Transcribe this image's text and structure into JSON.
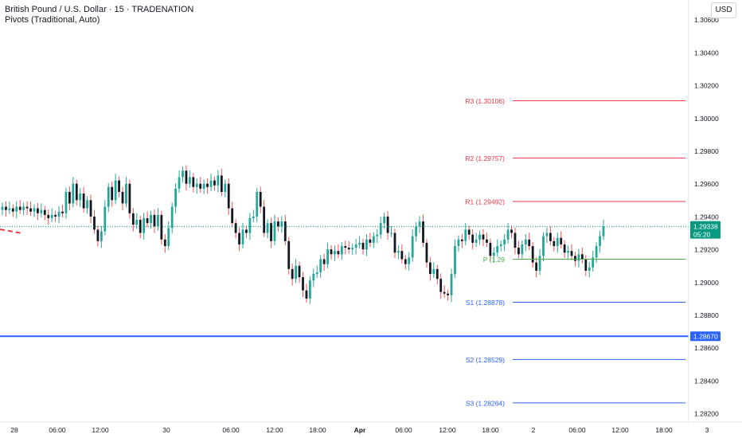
{
  "header": {
    "symbol_line": "British Pound / U.S. Dollar · 15 · TRADENATION",
    "indicator_line": "Pivots (Traditional, Auto)",
    "currency_button": "USD"
  },
  "colors": {
    "up": "#26a69a",
    "down": "#131722",
    "wick_down": "#ef5350",
    "resistance": "#f23645",
    "pivot": "#4caf50",
    "support": "#2962ff",
    "price_line": "#089981",
    "axis_text": "#131722"
  },
  "chart_data": {
    "type": "candlestick",
    "y_axis": {
      "range": [
        1.2805,
        1.3072
      ],
      "ticks": [
        "1.30600",
        "1.30400",
        "1.30200",
        "1.30000",
        "1.29800",
        "1.29600",
        "1.29400",
        "1.29200",
        "1.29000",
        "1.28800",
        "1.28600",
        "1.28400",
        "1.28200"
      ],
      "tick_values": [
        1.306,
        1.304,
        1.302,
        1.3,
        1.298,
        1.296,
        1.294,
        1.292,
        1.29,
        1.288,
        1.286,
        1.284,
        1.282
      ]
    },
    "x_axis": {
      "ticks": [
        "28",
        "06:00",
        "12:00",
        "30",
        "06:00",
        "12:00",
        "18:00",
        "Apr",
        "06:00",
        "12:00",
        "18:00",
        "2",
        "06:00",
        "12:00",
        "18:00",
        "3"
      ],
      "bold": [
        false,
        false,
        false,
        false,
        false,
        false,
        false,
        true,
        false,
        false,
        false,
        false,
        false,
        false,
        false,
        false
      ]
    },
    "pivots": [
      {
        "label": "R3 (1.30106)",
        "value": 1.30106,
        "kind": "resistance"
      },
      {
        "label": "R2 (1.29757)",
        "value": 1.29757,
        "kind": "resistance"
      },
      {
        "label": "R1 (1.29492)",
        "value": 1.29492,
        "kind": "resistance"
      },
      {
        "label": "P (1.29",
        "value": 1.2914,
        "kind": "pivot"
      },
      {
        "label": "S1 (1.28878)",
        "value": 1.28878,
        "kind": "support"
      },
      {
        "label": "S2 (1.28529)",
        "value": 1.28529,
        "kind": "support"
      },
      {
        "label": "S3 (1.28264)",
        "value": 1.28264,
        "kind": "support"
      }
    ],
    "horizontal_line": {
      "value": 1.2867,
      "label": "1.28670"
    },
    "last_price": {
      "value": 1.29338,
      "label": "1.29338",
      "countdown": "05:20"
    },
    "close_series": [
      1.2946,
      1.2944,
      1.2945,
      1.2943,
      1.2946,
      1.2944,
      1.2946,
      1.2945,
      1.2943,
      1.2945,
      1.2942,
      1.2944,
      1.2941,
      1.2939,
      1.2941,
      1.294,
      1.2943,
      1.2942,
      1.2955,
      1.2948,
      1.296,
      1.295,
      1.2954,
      1.2945,
      1.295,
      1.294,
      1.2932,
      1.2925,
      1.2931,
      1.2946,
      1.2958,
      1.295,
      1.2962,
      1.2955,
      1.2948,
      1.296,
      1.2942,
      1.2935,
      1.2938,
      1.293,
      1.2939,
      1.2936,
      1.2941,
      1.2934,
      1.2941,
      1.2926,
      1.2922,
      1.2933,
      1.2946,
      1.2957,
      1.2964,
      1.2968,
      1.296,
      1.2964,
      1.2958,
      1.296,
      1.2957,
      1.296,
      1.2958,
      1.2962,
      1.2959,
      1.2965,
      1.2955,
      1.296,
      1.2945,
      1.2936,
      1.293,
      1.2923,
      1.2932,
      1.293,
      1.2939,
      1.294,
      1.2955,
      1.2946,
      1.293,
      1.2936,
      1.2925,
      1.2937,
      1.2934,
      1.2937,
      1.2925,
      1.2908,
      1.2902,
      1.291,
      1.2903,
      1.2895,
      1.289,
      1.2901,
      1.2905,
      1.2906,
      1.2914,
      1.2911,
      1.292,
      1.2917,
      1.2919,
      1.2917,
      1.2922,
      1.2921,
      1.292,
      1.2921,
      1.2923,
      1.2924,
      1.292,
      1.2926,
      1.2924,
      1.2928,
      1.2929,
      1.2936,
      1.294,
      1.293,
      1.293,
      1.2918,
      1.2919,
      1.2914,
      1.2911,
      1.2915,
      1.2928,
      1.2934,
      1.2937,
      1.2924,
      1.2912,
      1.2905,
      1.2908,
      1.2902,
      1.2894,
      1.2893,
      1.2892,
      1.2905,
      1.2922,
      1.2926,
      1.2925,
      1.2932,
      1.2929,
      1.2924,
      1.2926,
      1.2929,
      1.2926,
      1.2924,
      1.2916,
      1.2918,
      1.2922,
      1.2923,
      1.2926,
      1.2932,
      1.293,
      1.2921,
      1.2917,
      1.2923,
      1.2926,
      1.2922,
      1.2912,
      1.2907,
      1.2916,
      1.2928,
      1.293,
      1.2925,
      1.2922,
      1.2927,
      1.2923,
      1.2918,
      1.2919,
      1.2916,
      1.2913,
      1.2917,
      1.2914,
      1.2907,
      1.2909,
      1.2915,
      1.2922,
      1.2928,
      1.2934
    ]
  }
}
